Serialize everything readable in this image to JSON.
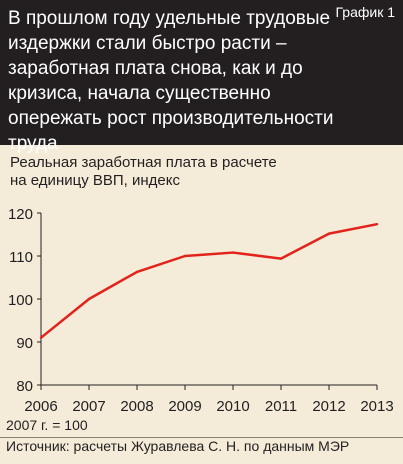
{
  "header": {
    "headline": "В прошлом году удельные трудовые издержки стали быстро расти – заработная плата снова, как и до кризиса, начала существенно опережать рост производительности труда",
    "badge": "График 1"
  },
  "subtitle_line1": "Реальная заработная плата в расчете",
  "subtitle_line2": "на единицу ВВП, индекс",
  "note": "2007 г. = 100",
  "source": "Источник: расчеты Журавлева С. Н. по данным МЭР",
  "colors": {
    "line": "#e3231b",
    "header_bg": "#231f20",
    "background": "#f4ecd9"
  },
  "chart_data": {
    "type": "line",
    "x": [
      2006,
      2007,
      2008,
      2009,
      2010,
      2011,
      2012,
      2013
    ],
    "x_tick_labels": [
      "2006",
      "2007",
      "2008",
      "2009",
      "2010",
      "2011",
      "2012",
      "2013"
    ],
    "y_tick_labels": [
      "80",
      "90",
      "100",
      "110",
      "120"
    ],
    "y_ticks": [
      80,
      90,
      100,
      110,
      120
    ],
    "series": [
      {
        "values": [
          91,
          100,
          106.3,
          110,
          110.8,
          109.4,
          115.2,
          117.4
        ]
      }
    ],
    "ylim": [
      80,
      120
    ],
    "grid": false,
    "xlabel": "",
    "ylabel": ""
  }
}
